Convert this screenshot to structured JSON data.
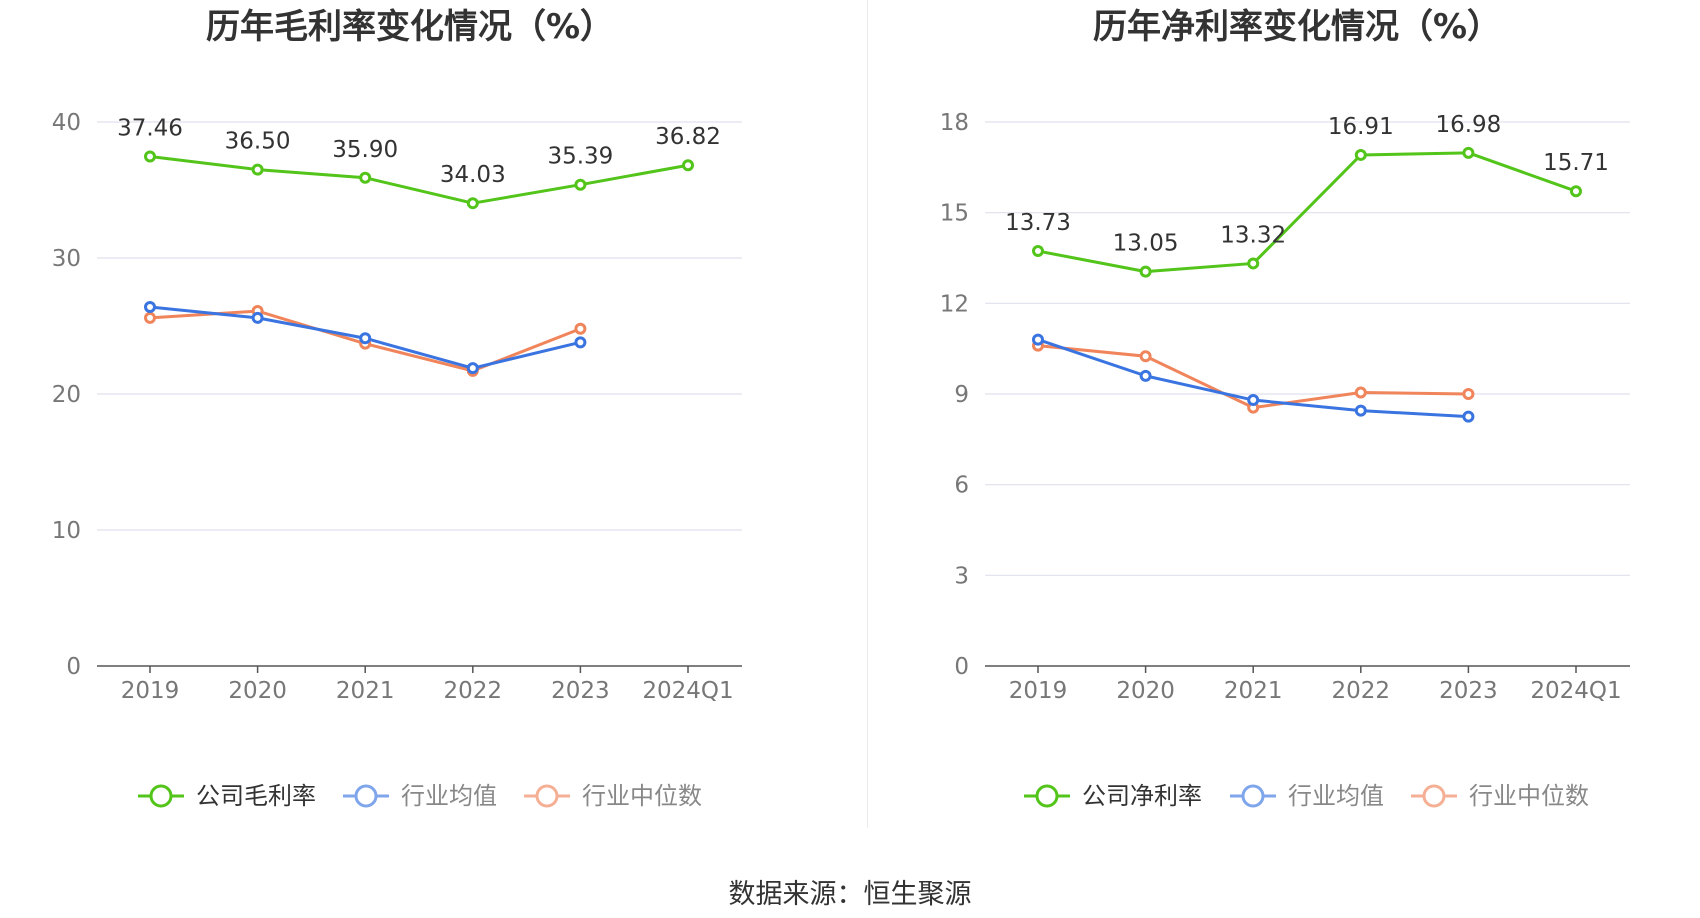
{
  "source_text": "数据来源：恒生聚源",
  "chart_data": [
    {
      "type": "line",
      "title": "历年毛利率变化情况（%）",
      "categories": [
        "2019",
        "2020",
        "2021",
        "2022",
        "2023",
        "2024Q1"
      ],
      "ylim": [
        0,
        40
      ],
      "yticks": [
        0,
        10,
        20,
        30,
        40
      ],
      "grid": true,
      "legend_position": "bottom",
      "series": [
        {
          "name": "公司毛利率",
          "color": "#52c41a",
          "show_labels": true,
          "values": [
            37.46,
            36.5,
            35.9,
            34.03,
            35.39,
            36.82
          ],
          "labels": [
            "37.46",
            "36.50",
            "35.90",
            "34.03",
            "35.39",
            "36.82"
          ]
        },
        {
          "name": "行业均值",
          "color": "#3a74e0",
          "show_labels": false,
          "values": [
            26.4,
            25.6,
            24.1,
            21.9,
            23.8,
            null
          ]
        },
        {
          "name": "行业中位数",
          "color": "#f0845a",
          "show_labels": false,
          "values": [
            25.6,
            26.1,
            23.7,
            21.7,
            24.8,
            null
          ]
        }
      ]
    },
    {
      "type": "line",
      "title": "历年净利率变化情况（%）",
      "categories": [
        "2019",
        "2020",
        "2021",
        "2022",
        "2023",
        "2024Q1"
      ],
      "ylim": [
        0,
        18
      ],
      "yticks": [
        0,
        3,
        6,
        9,
        12,
        15,
        18
      ],
      "grid": true,
      "legend_position": "bottom",
      "series": [
        {
          "name": "公司净利率",
          "color": "#52c41a",
          "show_labels": true,
          "values": [
            13.73,
            13.05,
            13.32,
            16.91,
            16.98,
            15.71
          ],
          "labels": [
            "13.73",
            "13.05",
            "13.32",
            "16.91",
            "16.98",
            "15.71"
          ]
        },
        {
          "name": "行业均值",
          "color": "#3a74e0",
          "show_labels": false,
          "values": [
            10.8,
            9.6,
            8.8,
            8.45,
            8.25,
            null
          ]
        },
        {
          "name": "行业中位数",
          "color": "#f0845a",
          "show_labels": false,
          "values": [
            10.6,
            10.25,
            8.55,
            9.05,
            9.0,
            null
          ]
        }
      ]
    }
  ]
}
